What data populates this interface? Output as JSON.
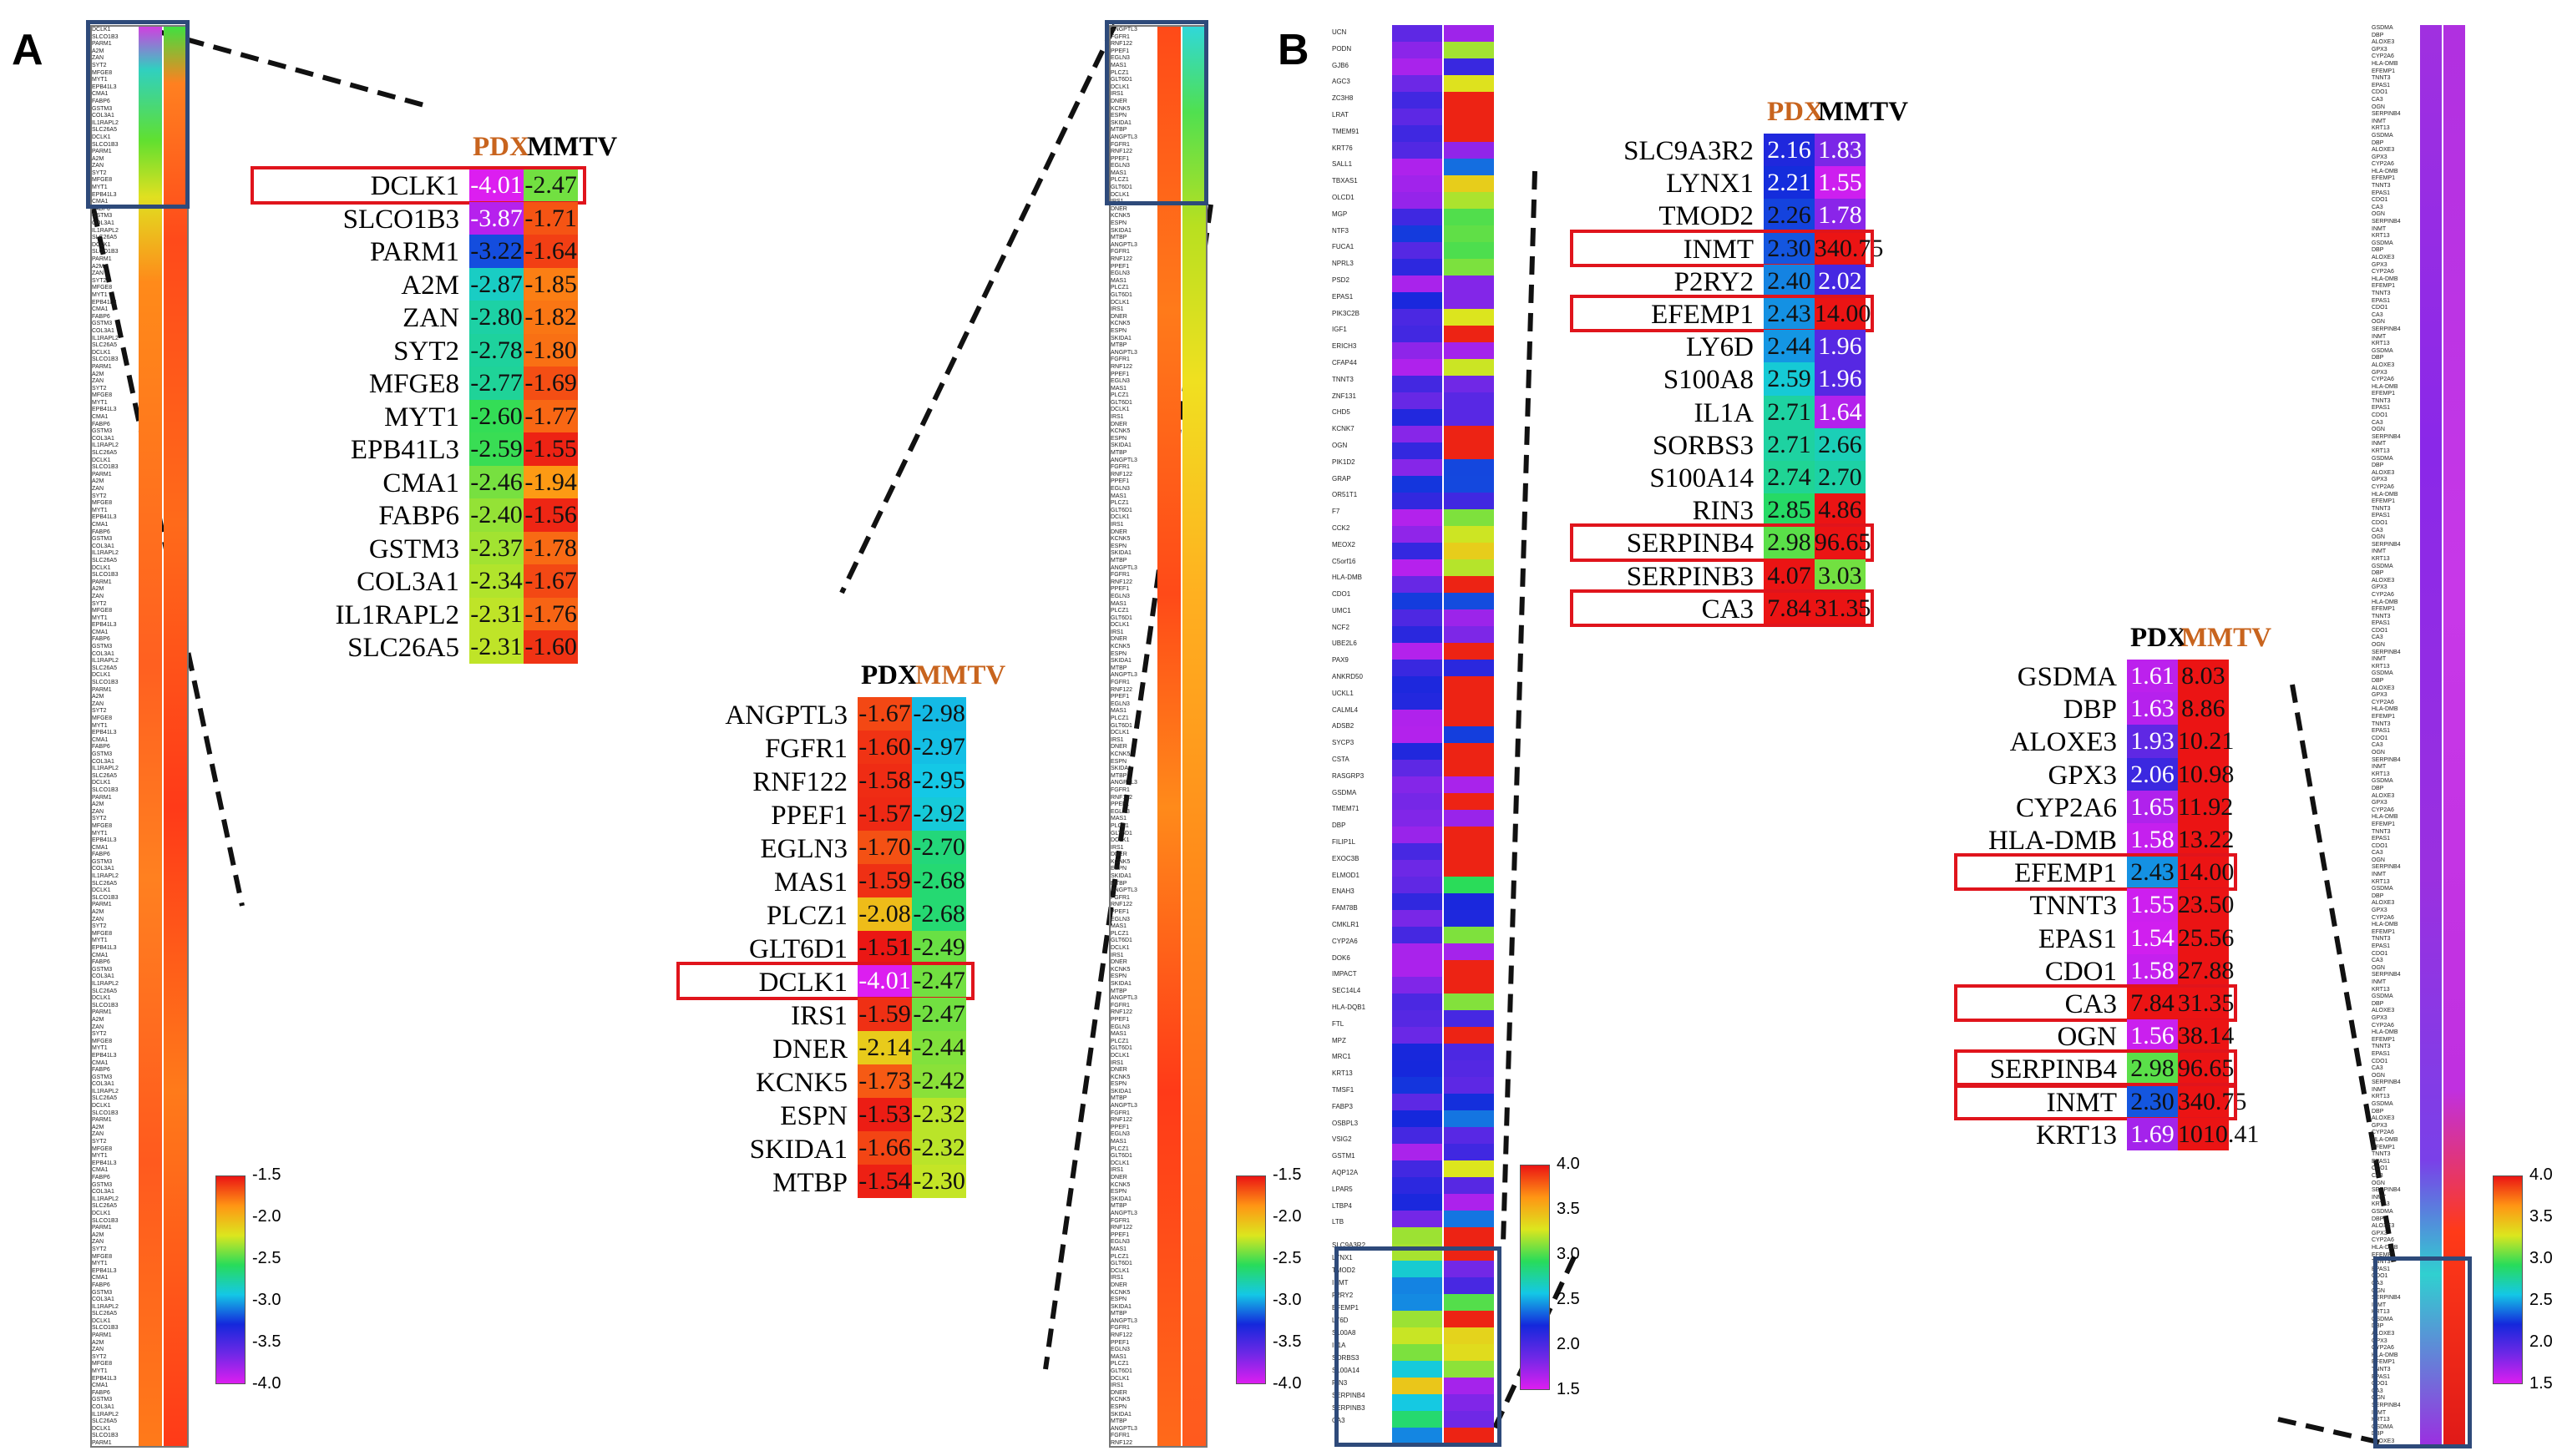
{
  "panels": [
    {
      "label": "A"
    },
    {
      "label": "B"
    }
  ],
  "chart_data": [
    {
      "type": "heatmap",
      "title": "A (left zoom, downregulated genes)",
      "columns": [
        "PDX",
        "MMTV"
      ],
      "highlighted_column": "PDX",
      "rows": [
        {
          "gene": "DCLK1",
          "values": [
            -4.01,
            -2.47
          ],
          "highlight": true
        },
        {
          "gene": "SLCO1B3",
          "values": [
            -3.87,
            -1.71
          ]
        },
        {
          "gene": "PARM1",
          "values": [
            -3.22,
            -1.64
          ]
        },
        {
          "gene": "A2M",
          "values": [
            -2.87,
            -1.85
          ]
        },
        {
          "gene": "ZAN",
          "values": [
            -2.8,
            -1.82
          ]
        },
        {
          "gene": "SYT2",
          "values": [
            -2.78,
            -1.8
          ]
        },
        {
          "gene": "MFGE8",
          "values": [
            -2.77,
            -1.69
          ]
        },
        {
          "gene": "MYT1",
          "values": [
            -2.6,
            -1.77
          ]
        },
        {
          "gene": "EPB41L3",
          "values": [
            -2.59,
            -1.55
          ]
        },
        {
          "gene": "CMA1",
          "values": [
            -2.46,
            -1.94
          ]
        },
        {
          "gene": "FABP6",
          "values": [
            -2.4,
            -1.56
          ]
        },
        {
          "gene": "GSTM3",
          "values": [
            -2.37,
            -1.78
          ]
        },
        {
          "gene": "COL3A1",
          "values": [
            -2.34,
            -1.67
          ]
        },
        {
          "gene": "IL1RAPL2",
          "values": [
            -2.31,
            -1.76
          ]
        },
        {
          "gene": "SLC26A5",
          "values": [
            -2.31,
            -1.6
          ]
        }
      ],
      "scale": {
        "min": -4.0,
        "max": -1.5,
        "ticks": [
          "-1.5",
          "-2.0",
          "-2.5",
          "-3.0",
          "-3.5",
          "-4.0"
        ]
      }
    },
    {
      "type": "heatmap",
      "title": "A (right zoom, downregulated genes)",
      "columns": [
        "PDX",
        "MMTV"
      ],
      "highlighted_column": "MMTV",
      "rows": [
        {
          "gene": "ANGPTL3",
          "values": [
            -1.67,
            -2.98
          ]
        },
        {
          "gene": "FGFR1",
          "values": [
            -1.6,
            -2.97
          ]
        },
        {
          "gene": "RNF122",
          "values": [
            -1.58,
            -2.95
          ]
        },
        {
          "gene": "PPEF1",
          "values": [
            -1.57,
            -2.92
          ]
        },
        {
          "gene": "EGLN3",
          "values": [
            -1.7,
            -2.7
          ]
        },
        {
          "gene": "MAS1",
          "values": [
            -1.59,
            -2.68
          ]
        },
        {
          "gene": "PLCZ1",
          "values": [
            -2.08,
            -2.68
          ]
        },
        {
          "gene": "GLT6D1",
          "values": [
            -1.51,
            -2.49
          ]
        },
        {
          "gene": "DCLK1",
          "values": [
            -4.01,
            -2.47
          ],
          "highlight": true
        },
        {
          "gene": "IRS1",
          "values": [
            -1.59,
            -2.47
          ]
        },
        {
          "gene": "DNER",
          "values": [
            -2.14,
            -2.44
          ]
        },
        {
          "gene": "KCNK5",
          "values": [
            -1.73,
            -2.42
          ]
        },
        {
          "gene": "ESPN",
          "values": [
            -1.53,
            -2.32
          ]
        },
        {
          "gene": "SKIDA1",
          "values": [
            -1.66,
            -2.32
          ]
        },
        {
          "gene": "MTBP",
          "values": [
            -1.54,
            -2.3
          ]
        }
      ],
      "scale": {
        "min": -4.0,
        "max": -1.5,
        "ticks": [
          "-1.5",
          "-2.0",
          "-2.5",
          "-3.0",
          "-3.5",
          "-4.0"
        ]
      }
    },
    {
      "type": "heatmap",
      "title": "B (left zoom, upregulated genes)",
      "columns": [
        "PDX",
        "MMTV"
      ],
      "highlighted_column": "PDX",
      "rows": [
        {
          "gene": "SLC9A3R2",
          "values": [
            2.16,
            1.83
          ]
        },
        {
          "gene": "LYNX1",
          "values": [
            2.21,
            1.55
          ]
        },
        {
          "gene": "TMOD2",
          "values": [
            2.26,
            1.78
          ]
        },
        {
          "gene": "INMT",
          "values": [
            2.3,
            340.75
          ],
          "highlight": true
        },
        {
          "gene": "P2RY2",
          "values": [
            2.4,
            2.02
          ]
        },
        {
          "gene": "EFEMP1",
          "values": [
            2.43,
            14.0
          ],
          "highlight": true
        },
        {
          "gene": "LY6D",
          "values": [
            2.44,
            1.96
          ]
        },
        {
          "gene": "S100A8",
          "values": [
            2.59,
            1.96
          ]
        },
        {
          "gene": "IL1A",
          "values": [
            2.71,
            1.64
          ]
        },
        {
          "gene": "SORBS3",
          "values": [
            2.71,
            2.66
          ]
        },
        {
          "gene": "S100A14",
          "values": [
            2.74,
            2.7
          ]
        },
        {
          "gene": "RIN3",
          "values": [
            2.85,
            4.86
          ]
        },
        {
          "gene": "SERPINB4",
          "values": [
            2.98,
            96.65
          ],
          "highlight": true
        },
        {
          "gene": "SERPINB3",
          "values": [
            4.07,
            3.03
          ]
        },
        {
          "gene": "CA3",
          "values": [
            7.84,
            31.35
          ],
          "highlight": true
        }
      ],
      "scale": {
        "min": 1.5,
        "max": 4.0,
        "ticks": [
          "4.0",
          "3.5",
          "3.0",
          "2.5",
          "2.0",
          "1.5"
        ]
      }
    },
    {
      "type": "heatmap",
      "title": "B (right zoom, upregulated genes)",
      "columns": [
        "PDX",
        "MMTV"
      ],
      "highlighted_column": "MMTV",
      "rows": [
        {
          "gene": "GSDMA",
          "values": [
            1.61,
            8.03
          ]
        },
        {
          "gene": "DBP",
          "values": [
            1.63,
            8.86
          ]
        },
        {
          "gene": "ALOXE3",
          "values": [
            1.93,
            10.21
          ]
        },
        {
          "gene": "GPX3",
          "values": [
            2.06,
            10.98
          ]
        },
        {
          "gene": "CYP2A6",
          "values": [
            1.65,
            11.92
          ]
        },
        {
          "gene": "HLA-DMB",
          "values": [
            1.58,
            13.22
          ]
        },
        {
          "gene": "EFEMP1",
          "values": [
            2.43,
            14.0
          ],
          "highlight": true
        },
        {
          "gene": "TNNT3",
          "values": [
            1.55,
            23.5
          ]
        },
        {
          "gene": "EPAS1",
          "values": [
            1.54,
            25.56
          ]
        },
        {
          "gene": "CDO1",
          "values": [
            1.58,
            27.88
          ]
        },
        {
          "gene": "CA3",
          "values": [
            7.84,
            31.35
          ],
          "highlight": true
        },
        {
          "gene": "OGN",
          "values": [
            1.56,
            38.14
          ]
        },
        {
          "gene": "SERPINB4",
          "values": [
            2.98,
            96.65
          ],
          "highlight": true
        },
        {
          "gene": "INMT",
          "values": [
            2.3,
            340.75
          ],
          "highlight": true
        },
        {
          "gene": "KRT13",
          "values": [
            1.69,
            1010.41
          ]
        }
      ],
      "scale": {
        "min": 1.5,
        "max": 4.0,
        "ticks": [
          "4.0",
          "3.5",
          "3.0",
          "2.5",
          "2.0",
          "1.5"
        ]
      }
    }
  ],
  "strip_labels": {
    "a_left": [
      "DCLK1",
      "SLCO1B3",
      "PARM1",
      "A2M",
      "ZAN",
      "SYT2",
      "MFGE8",
      "MYT1",
      "EPB41L3",
      "CMA1",
      "FABP6",
      "GSTM3",
      "COL3A1",
      "IL1RAPL2",
      "SLC26A5"
    ],
    "a_right": [
      "ANGPTL3",
      "FGFR1",
      "RNF122",
      "PPEF1",
      "EGLN3",
      "MAS1",
      "PLCZ1",
      "GLT6D1",
      "DCLK1",
      "IRS1",
      "DNER",
      "KCNK5",
      "ESPN",
      "SKIDA1",
      "MTBP"
    ],
    "b_left_top": [
      "UCN",
      "PODN",
      "GJB6",
      "AGC3",
      "ZC3H8",
      "LRAT",
      "TMEM91",
      "KRT76",
      "SALL1",
      "TBXAS1",
      "OLCD1",
      "MGP",
      "NTF3",
      "FUCA1",
      "NPRL3",
      "PSD2",
      "EPAS1",
      "PIK3C2B",
      "IGF1",
      "ERICH3",
      "CFAP44",
      "TNNT3",
      "ZNF131",
      "CHD5",
      "KCNK7",
      "OGN",
      "PIK1D2",
      "GRAP",
      "OR51T1",
      "F7",
      "CCK2",
      "MEOX2",
      "C5orf16",
      "HLA-DMB",
      "CDO1",
      "UMC1",
      "NCF2",
      "UBE2L6",
      "PAX9",
      "ANKRD50",
      "UCKL1",
      "CALML4",
      "ADSB2",
      "SYCP3",
      "CSTA",
      "RASGRP3",
      "GSDMA",
      "TMEM71",
      "DBP",
      "FILIP1L",
      "EXOC3B",
      "ELMOD1",
      "ENAH3",
      "FAM78B",
      "CMKLR1",
      "CYP2A6",
      "DOK6",
      "IMPACT",
      "SEC14L4",
      "HLA-DQB1",
      "FTL",
      "MPZ",
      "MRC1",
      "KRT13",
      "TMSF1",
      "FABP3",
      "OSBPL3",
      "VSIG2",
      "GSTM1",
      "AQP12A",
      "LPAR5",
      "LTBP4",
      "LTB"
    ],
    "b_left_zoom": [
      "SLC9A3R2",
      "LYNX1",
      "TMOD2",
      "INMT",
      "P2RY2",
      "EFEMP1",
      "LY6D",
      "S100A8",
      "IL1A",
      "SORBS3",
      "S100A14",
      "RIN3",
      "SERPINB4",
      "SERPINB3",
      "CA3"
    ],
    "b_right_zoom": [
      "GSDMA",
      "DBP",
      "ALOXE3",
      "GPX3",
      "CYP2A6",
      "HLA-DMB",
      "EFEMP1",
      "TNNT3",
      "EPAS1",
      "CDO1",
      "CA3",
      "OGN",
      "SERPINB4",
      "INMT",
      "KRT13"
    ]
  },
  "colors": {
    "highlight_box": "#e0141c",
    "zoom_box": "#2e4a7a",
    "pdx_label_highlight": "#c8641e",
    "mmtv_label_highlight": "#c8641e"
  }
}
